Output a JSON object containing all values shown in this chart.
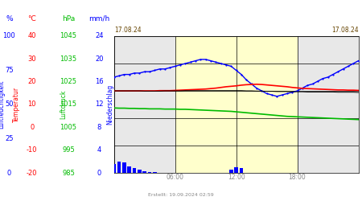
{
  "title_left": "17.08.24",
  "title_right": "17.08.24",
  "xlabel_times": [
    "06:00",
    "12:00",
    "18:00"
  ],
  "footer": "Erstellt: 19.09.2024 02:59",
  "background_day": "#ffffcc",
  "background_night": "#e8e8e8",
  "humidity_color": "#0000ff",
  "temperature_color": "#ff0000",
  "pressure_color": "#00bb00",
  "taupunkt_color": "#000000",
  "precipitation_color": "#0000ff",
  "hours": [
    0,
    0.5,
    1,
    1.5,
    2,
    2.5,
    3,
    3.5,
    4,
    4.5,
    5,
    5.5,
    6,
    6.5,
    7,
    7.5,
    8,
    8.5,
    9,
    9.5,
    10,
    10.5,
    11,
    11.5,
    12,
    12.5,
    13,
    13.5,
    14,
    14.5,
    15,
    15.5,
    16,
    16.5,
    17,
    17.5,
    18,
    18.5,
    19,
    19.5,
    20,
    20.5,
    21,
    21.5,
    22,
    22.5,
    23,
    23.5,
    24
  ],
  "humidity": [
    70,
    71,
    72,
    72,
    73,
    73,
    74,
    74,
    75,
    76,
    76,
    77,
    78,
    79,
    80,
    81,
    82,
    83,
    83,
    82,
    81,
    80,
    79,
    78,
    75,
    72,
    68,
    65,
    62,
    60,
    58,
    57,
    56,
    57,
    58,
    59,
    60,
    62,
    64,
    65,
    67,
    69,
    70,
    72,
    74,
    76,
    78,
    80,
    82
  ],
  "temperature": [
    16.0,
    16.0,
    16.0,
    16.0,
    16.0,
    16.0,
    16.0,
    16.0,
    16.0,
    16.1,
    16.1,
    16.1,
    16.2,
    16.3,
    16.4,
    16.5,
    16.6,
    16.7,
    16.8,
    17.0,
    17.2,
    17.5,
    17.8,
    18.0,
    18.2,
    18.5,
    18.7,
    18.8,
    18.9,
    18.8,
    18.6,
    18.4,
    18.2,
    18.0,
    17.8,
    17.5,
    17.3,
    17.1,
    17.0,
    16.9,
    16.8,
    16.7,
    16.6,
    16.5,
    16.4,
    16.4,
    16.3,
    16.3,
    16.2
  ],
  "taupunkt": [
    16.0,
    16.0,
    16.0,
    16.0,
    16.0,
    16.0,
    15.9,
    15.9,
    15.9,
    15.9,
    16.0,
    16.0,
    16.0,
    16.0,
    16.1,
    16.1,
    16.1,
    16.1,
    16.1,
    16.1,
    16.1,
    16.1,
    16.1,
    16.1,
    16.1,
    16.1,
    16.0,
    16.0,
    15.9,
    15.9,
    15.8,
    15.8,
    15.7,
    15.7,
    15.7,
    15.6,
    15.6,
    15.6,
    15.5,
    15.5,
    15.5,
    15.5,
    15.5,
    15.5,
    15.4,
    15.4,
    15.4,
    15.4,
    15.3
  ],
  "pressure": [
    1013.5,
    1013.4,
    1013.4,
    1013.3,
    1013.3,
    1013.2,
    1013.2,
    1013.1,
    1013.1,
    1013.1,
    1013.0,
    1013.0,
    1013.0,
    1012.9,
    1012.9,
    1012.8,
    1012.7,
    1012.6,
    1012.5,
    1012.4,
    1012.3,
    1012.2,
    1012.1,
    1012.0,
    1011.8,
    1011.6,
    1011.4,
    1011.2,
    1011.0,
    1010.8,
    1010.6,
    1010.4,
    1010.2,
    1010.0,
    1009.8,
    1009.7,
    1009.6,
    1009.5,
    1009.4,
    1009.3,
    1009.2,
    1009.1,
    1009.0,
    1008.9,
    1008.8,
    1008.7,
    1008.6,
    1008.5,
    1008.4
  ],
  "precipitation_hours": [
    0,
    0.5,
    1,
    1.5,
    2,
    2.5,
    3,
    3.5,
    4
  ],
  "precipitation": [
    1.5,
    2.0,
    1.8,
    1.2,
    0.8,
    0.5,
    0.3,
    0.2,
    0.1
  ],
  "precipitation2_hours": [
    11.5,
    12,
    12.5
  ],
  "precipitation2": [
    0.5,
    1.0,
    0.8
  ],
  "temp_min": -20,
  "temp_max": 40,
  "pres_min": 985,
  "pres_max": 1045,
  "mmh_max": 24,
  "pct_ticks": [
    100,
    75,
    50,
    25,
    0
  ],
  "c_ticks": [
    40,
    30,
    20,
    10,
    0,
    -10,
    -20
  ],
  "hpa_ticks": [
    1045,
    1035,
    1025,
    1015,
    1005,
    995,
    985
  ],
  "mmh_ticks": [
    24,
    20,
    16,
    12,
    8,
    4,
    0
  ]
}
